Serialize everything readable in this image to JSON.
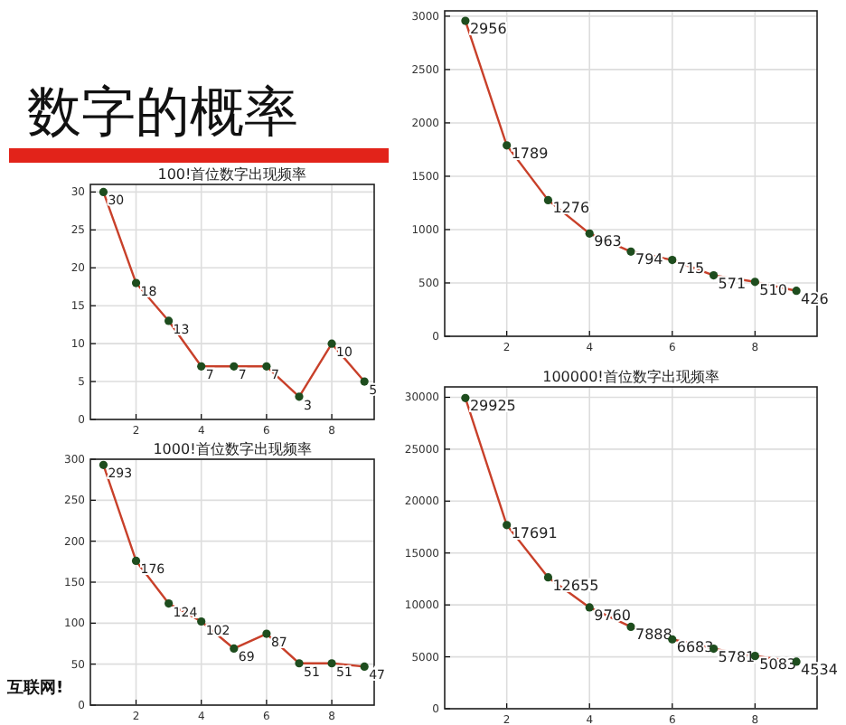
{
  "chart_data": [
    {
      "type": "line",
      "title": "100!首位数字出现频率",
      "annotations": [
        "数字的概率"
      ],
      "x": [
        1,
        2,
        3,
        4,
        5,
        6,
        7,
        8,
        9
      ],
      "values": [
        30,
        18,
        13,
        7,
        7,
        7,
        3,
        10,
        5
      ],
      "color": "#c8402a",
      "marker": "circle",
      "data_labels": true,
      "grid": true,
      "xlim": [
        0.6,
        9.3
      ],
      "ylim": [
        0,
        31
      ],
      "xticks": [
        2,
        4,
        6,
        8
      ],
      "yticks": [
        0,
        5,
        10,
        15,
        20,
        25,
        30
      ]
    },
    {
      "type": "line",
      "title": "1000!首位数字出现频率",
      "annotations": [
        "互联网!"
      ],
      "x": [
        1,
        2,
        3,
        4,
        5,
        6,
        7,
        8,
        9
      ],
      "values": [
        293,
        176,
        124,
        102,
        69,
        87,
        51,
        51,
        47
      ],
      "color": "#c8402a",
      "marker": "circle",
      "data_labels": true,
      "grid": true,
      "xlim": [
        0.6,
        9.3
      ],
      "ylim": [
        0,
        300
      ],
      "xticks": [
        2,
        4,
        6,
        8
      ],
      "yticks": [
        0,
        50,
        100,
        150,
        200,
        250,
        300
      ]
    },
    {
      "type": "line",
      "x": [
        1,
        2,
        3,
        4,
        5,
        6,
        7,
        8,
        9
      ],
      "values": [
        2956,
        1789,
        1276,
        963,
        794,
        715,
        571,
        510,
        426
      ],
      "color": "#c8402a",
      "marker": "circle",
      "data_labels": true,
      "grid": true,
      "xlim": [
        0.5,
        9.5
      ],
      "ylim": [
        0,
        3050
      ],
      "xticks": [
        2,
        4,
        6,
        8
      ],
      "yticks": [
        0,
        500,
        1000,
        1500,
        2000,
        2500,
        3000
      ]
    },
    {
      "type": "line",
      "title": "100000!首位数字出现频率",
      "x": [
        1,
        2,
        3,
        4,
        5,
        6,
        7,
        8,
        9
      ],
      "values": [
        29925,
        17691,
        12655,
        9760,
        7888,
        6683,
        5781,
        5083,
        4534
      ],
      "color": "#c8402a",
      "marker": "circle",
      "data_labels": true,
      "grid": true,
      "xlim": [
        0.5,
        9.5
      ],
      "ylim": [
        0,
        31000
      ],
      "xticks": [
        2,
        4,
        6,
        8
      ],
      "yticks": [
        0,
        5000,
        10000,
        15000,
        20000,
        25000,
        30000
      ]
    }
  ]
}
